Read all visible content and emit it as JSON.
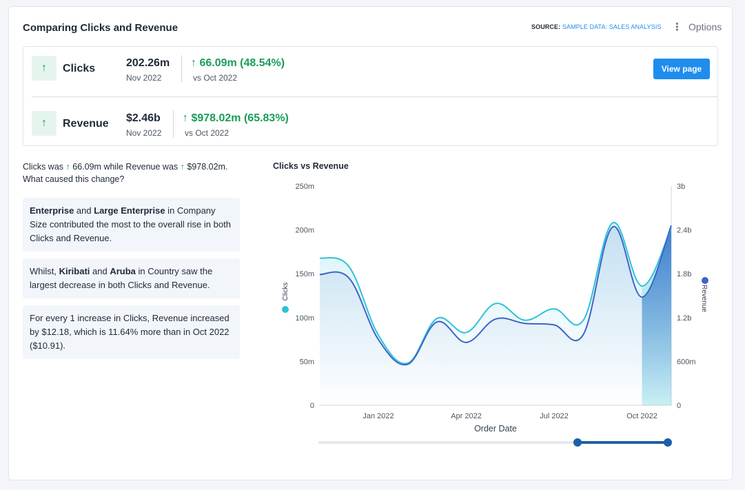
{
  "header": {
    "title": "Comparing Clicks and Revenue",
    "source_label": "SOURCE:",
    "source_link": "SAMPLE DATA: SALES ANALYSIS",
    "options_label": "Options"
  },
  "metrics": [
    {
      "name": "Clicks",
      "value": "202.26m",
      "date": "Nov 2022",
      "delta": "66.09m (48.54%)",
      "vs": "vs Oct 2022"
    },
    {
      "name": "Revenue",
      "value": "$2.46b",
      "date": "Nov 2022",
      "delta": "$978.02m (65.83%)",
      "vs": "vs Oct 2022"
    }
  ],
  "view_button": "View page",
  "question": {
    "part1": "Clicks was",
    "val1": "66.09m",
    "part2": "while Revenue was",
    "val2": "$978.02m.",
    "part3": "What caused this change?"
  },
  "insights": [
    {
      "b1": "Enterprise",
      "t1": " and ",
      "b2": "Large Enterprise",
      "t2": " in Company Size contributed the most to the overall rise in both Clicks and Revenue."
    },
    {
      "t0": "Whilst, ",
      "b1": "Kiribati",
      "t1": " and ",
      "b2": "Aruba",
      "t2": " in Country saw the largest decrease in both Clicks and Revenue."
    },
    {
      "t0": "For every 1 increase in Clicks, Revenue increased by $12.18, which is 11.64% more than in Oct 2022 ($10.91)."
    }
  ],
  "colors": {
    "accent": "#1f8ded",
    "positive": "#1a9c5a",
    "clicks": "#2ec2d6",
    "revenue": "#3f63c9"
  },
  "chart_data": {
    "type": "line",
    "title": "Clicks vs Revenue",
    "xlabel": "Order Date",
    "y_left_label": "Clicks",
    "y_right_label": "Revenue",
    "x_ticks": [
      "Jan 2022",
      "Apr 2022",
      "Jul 2022",
      "Oct 2022"
    ],
    "y_left_ticks": [
      "0",
      "50m",
      "100m",
      "150m",
      "200m",
      "250m"
    ],
    "y_right_ticks": [
      "0",
      "600m",
      "1.2b",
      "1.8b",
      "2.4b",
      "3b"
    ],
    "y_left_range": [
      0,
      250000000
    ],
    "y_right_range": [
      0,
      3000000000
    ],
    "x": [
      "Nov 2021",
      "Dec 2021",
      "Jan 2022",
      "Feb 2022",
      "Mar 2022",
      "Apr 2022",
      "May 2022",
      "Jun 2022",
      "Jul 2022",
      "Aug 2022",
      "Sep 2022",
      "Oct 2022",
      "Nov 2022"
    ],
    "series": [
      {
        "name": "Clicks",
        "axis": "left",
        "values": [
          168000000,
          158000000,
          80000000,
          48000000,
          99000000,
          83000000,
          116000000,
          97000000,
          110000000,
          97000000,
          208000000,
          136000000,
          202260000
        ]
      },
      {
        "name": "Revenue",
        "axis": "right",
        "values": [
          1790000000,
          1740000000,
          900000000,
          560000000,
          1140000000,
          860000000,
          1180000000,
          1120000000,
          1100000000,
          970000000,
          2440000000,
          1480000000,
          2460000000
        ]
      }
    ],
    "selected_range": [
      "Oct 2022",
      "Nov 2022"
    ]
  }
}
